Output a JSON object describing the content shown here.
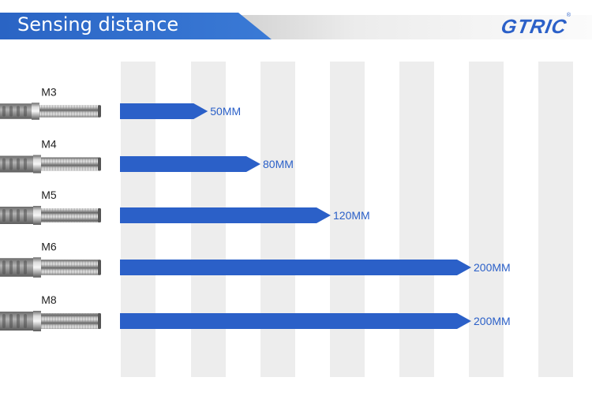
{
  "header": {
    "title": "Sensing distance",
    "brand": "GTRIC",
    "brand_mark": "®"
  },
  "colors": {
    "accent": "#2b60c8",
    "header_blue": "#2c6dcb",
    "band_gray": "#ededed"
  },
  "chart_data": {
    "type": "bar",
    "orientation": "horizontal",
    "title": "Sensing distance",
    "categories": [
      "M3",
      "M4",
      "M5",
      "M6",
      "M8"
    ],
    "values": [
      50,
      80,
      120,
      200,
      200
    ],
    "value_labels": [
      "50MM",
      "80MM",
      "120MM",
      "200MM",
      "200MM"
    ],
    "unit": "MM",
    "xlim": [
      0,
      200
    ],
    "xlabel": "",
    "ylabel": "",
    "grid": true,
    "legend": "none"
  }
}
